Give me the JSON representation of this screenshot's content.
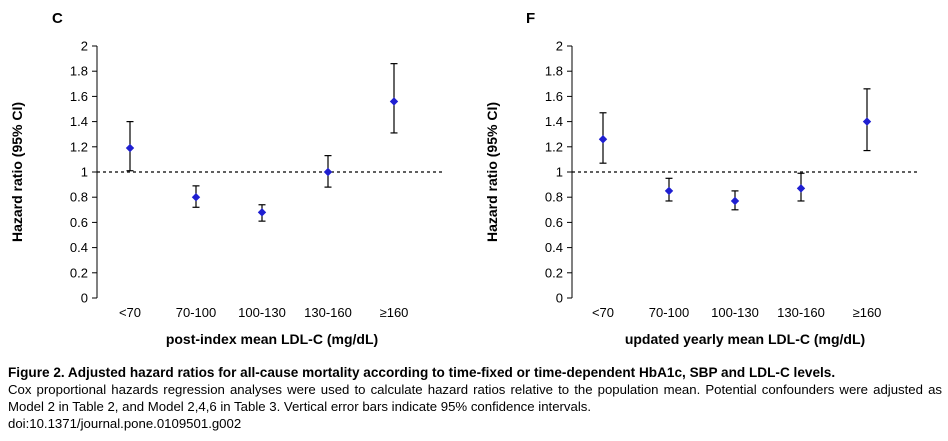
{
  "chart_data": [
    {
      "type": "scatter",
      "panel": "C",
      "categories": [
        "<70",
        "70-100",
        "100-130",
        "130-160",
        "≥160"
      ],
      "values": [
        1.19,
        0.8,
        0.68,
        1.0,
        1.56
      ],
      "ci_lower": [
        1.01,
        0.72,
        0.61,
        0.88,
        1.31
      ],
      "ci_upper": [
        1.4,
        0.89,
        0.74,
        1.13,
        1.86
      ],
      "xlabel": "post-index mean LDL-C (mg/dL)",
      "ylabel": "Hazard ratio (95% CI)",
      "ylim": [
        0,
        2
      ],
      "yticks": [
        "0",
        "0.2",
        "0.4",
        "0.6",
        "0.8",
        "1",
        "1.2",
        "1.4",
        "1.6",
        "1.8",
        "2"
      ],
      "reference_line": 1,
      "marker_color": "#1f1fd1"
    },
    {
      "type": "scatter",
      "panel": "F",
      "categories": [
        "<70",
        "70-100",
        "100-130",
        "130-160",
        "≥160"
      ],
      "values": [
        1.26,
        0.85,
        0.77,
        0.87,
        1.4
      ],
      "ci_lower": [
        1.07,
        0.77,
        0.7,
        0.77,
        1.17
      ],
      "ci_upper": [
        1.47,
        0.95,
        0.85,
        0.99,
        1.66
      ],
      "xlabel": "updated yearly mean LDL-C (mg/dL)",
      "ylabel": "Hazard ratio (95% CI)",
      "ylim": [
        0,
        2
      ],
      "yticks": [
        "0",
        "0.2",
        "0.4",
        "0.6",
        "0.8",
        "1",
        "1.2",
        "1.4",
        "1.6",
        "1.8",
        "2"
      ],
      "reference_line": 1,
      "marker_color": "#1f1fd1"
    }
  ],
  "caption": {
    "title": "Figure 2. Adjusted hazard ratios for all-cause mortality according to time-fixed or time-dependent HbA1c, SBP and LDL-C levels.",
    "body": "Cox proportional hazards regression analyses were used to calculate hazard ratios relative to the population mean. Potential confounders were adjusted as Model 2 in Table 2, and Model 2,4,6 in Table 3. Vertical error bars indicate 95% confidence intervals.",
    "doi": "doi:10.1371/journal.pone.0109501.g002"
  }
}
